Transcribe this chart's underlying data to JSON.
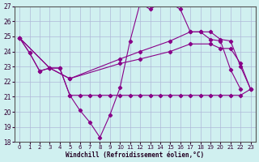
{
  "xlabel": "Windchill (Refroidissement éolien,°C)",
  "xlim": [
    -0.5,
    23.5
  ],
  "ylim": [
    18,
    27
  ],
  "yticks": [
    18,
    19,
    20,
    21,
    22,
    23,
    24,
    25,
    26,
    27
  ],
  "xticks": [
    0,
    1,
    2,
    3,
    4,
    5,
    6,
    7,
    8,
    9,
    10,
    11,
    12,
    13,
    14,
    15,
    16,
    17,
    18,
    19,
    20,
    21,
    22,
    23
  ],
  "background_color": "#d0f0f0",
  "grid_color": "#b0b8d8",
  "line_color": "#880088",
  "line1_x": [
    0,
    1,
    2,
    3,
    4,
    5,
    6,
    7,
    8,
    9,
    10,
    11,
    12,
    13,
    14,
    15,
    16,
    17,
    18,
    19,
    20,
    21,
    22,
    23
  ],
  "line1_y": [
    24.9,
    23.9,
    22.7,
    22.9,
    22.9,
    21.1,
    21.1,
    21.1,
    21.1,
    21.1,
    21.1,
    21.1,
    21.1,
    21.1,
    21.1,
    21.1,
    21.1,
    21.1,
    21.1,
    21.1,
    21.1,
    21.1,
    21.1,
    21.5
  ],
  "line2_x": [
    0,
    1,
    2,
    3,
    4,
    5,
    6,
    7,
    8,
    9,
    10,
    11,
    12,
    13,
    14,
    15,
    16,
    17,
    18,
    19,
    20,
    21,
    22
  ],
  "line2_y": [
    24.9,
    23.9,
    22.7,
    22.9,
    22.9,
    21.1,
    20.1,
    19.3,
    18.3,
    19.8,
    21.6,
    24.7,
    27.2,
    26.8,
    27.2,
    27.2,
    26.8,
    25.3,
    25.3,
    24.8,
    24.7,
    22.8,
    21.5
  ],
  "line3_x": [
    0,
    3,
    5,
    10,
    12,
    15,
    17,
    18,
    19,
    20,
    21,
    22,
    23
  ],
  "line3_y": [
    24.9,
    22.9,
    22.2,
    23.5,
    24.0,
    24.7,
    25.3,
    25.3,
    25.3,
    24.8,
    24.7,
    23.0,
    21.5
  ],
  "line4_x": [
    0,
    3,
    5,
    10,
    12,
    15,
    17,
    19,
    20,
    21,
    22,
    23
  ],
  "line4_y": [
    24.9,
    22.9,
    22.2,
    23.2,
    23.5,
    24.0,
    24.5,
    24.5,
    24.2,
    24.2,
    23.2,
    21.5
  ]
}
